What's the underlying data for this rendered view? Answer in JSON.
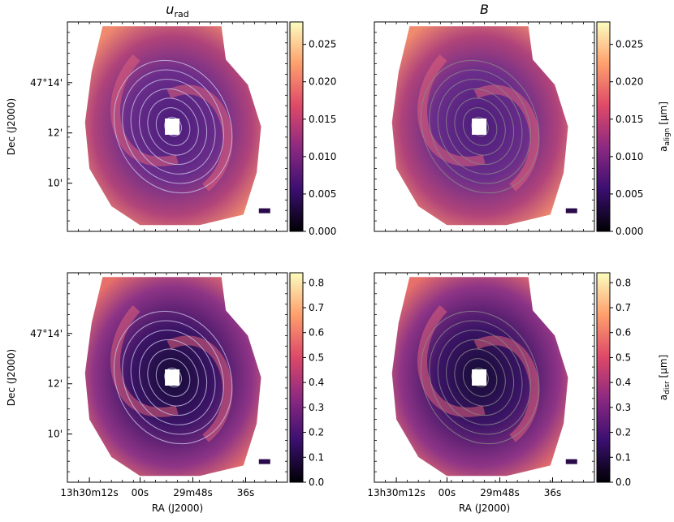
{
  "chart_data": [
    {
      "type": "heatmap",
      "panel": "top-left",
      "title": "u_rad",
      "title_main": "u",
      "title_sub": "rad",
      "xlabel": "",
      "ylabel": "Dec (J2000)",
      "yticks": [
        "47°14'",
        "12'",
        "10'"
      ],
      "xticks": [],
      "colorbar": {
        "label": "",
        "range": [
          0.0,
          0.028
        ],
        "ticks": [
          "0.000",
          "0.005",
          "0.010",
          "0.015",
          "0.020",
          "0.025"
        ],
        "tick_values": [
          0.0,
          0.005,
          0.01,
          0.015,
          0.02,
          0.025
        ]
      },
      "contour_color": "#c9c3e8"
    },
    {
      "type": "heatmap",
      "panel": "top-right",
      "title": "B",
      "xlabel": "",
      "ylabel": "",
      "yticks": [],
      "xticks": [],
      "colorbar": {
        "label": "a_align [μm]",
        "label_main": "a",
        "label_sub": "align",
        "label_unit": " [μm]",
        "range": [
          0.0,
          0.028
        ],
        "ticks": [
          "0.000",
          "0.005",
          "0.010",
          "0.015",
          "0.020",
          "0.025"
        ],
        "tick_values": [
          0.0,
          0.005,
          0.01,
          0.015,
          0.02,
          0.025
        ]
      },
      "contour_color": "#8a8a8a"
    },
    {
      "type": "heatmap",
      "panel": "bottom-left",
      "title": "",
      "xlabel": "RA (J2000)",
      "ylabel": "Dec (J2000)",
      "yticks": [
        "47°14'",
        "12'",
        "10'"
      ],
      "xticks": [
        "13h30m12s",
        "00s",
        "29m48s",
        "36s"
      ],
      "colorbar": {
        "label": "",
        "range": [
          0.0,
          0.84
        ],
        "ticks": [
          "0.0",
          "0.1",
          "0.2",
          "0.3",
          "0.4",
          "0.5",
          "0.6",
          "0.7",
          "0.8"
        ],
        "tick_values": [
          0.0,
          0.1,
          0.2,
          0.3,
          0.4,
          0.5,
          0.6,
          0.7,
          0.8
        ]
      },
      "contour_color": "#c9c3e8"
    },
    {
      "type": "heatmap",
      "panel": "bottom-right",
      "title": "",
      "xlabel": "RA (J2000)",
      "ylabel": "",
      "yticks": [],
      "xticks": [
        "13h30m12s",
        "00s",
        "29m48s",
        "36s"
      ],
      "colorbar": {
        "label": "a_disr [μm]",
        "label_main": "a",
        "label_sub": "disr",
        "label_unit": " [μm]",
        "range": [
          0.0,
          0.84
        ],
        "ticks": [
          "0.0",
          "0.1",
          "0.2",
          "0.3",
          "0.4",
          "0.5",
          "0.6",
          "0.7",
          "0.8"
        ],
        "tick_values": [
          0.0,
          0.1,
          0.2,
          0.3,
          0.4,
          0.5,
          0.6,
          0.7,
          0.8
        ]
      },
      "contour_color": "#8a8a8a"
    }
  ],
  "colormap": [
    "#000004",
    "#3b0f70",
    "#8c2981",
    "#de4968",
    "#fe9f6d",
    "#fcfdbf"
  ]
}
